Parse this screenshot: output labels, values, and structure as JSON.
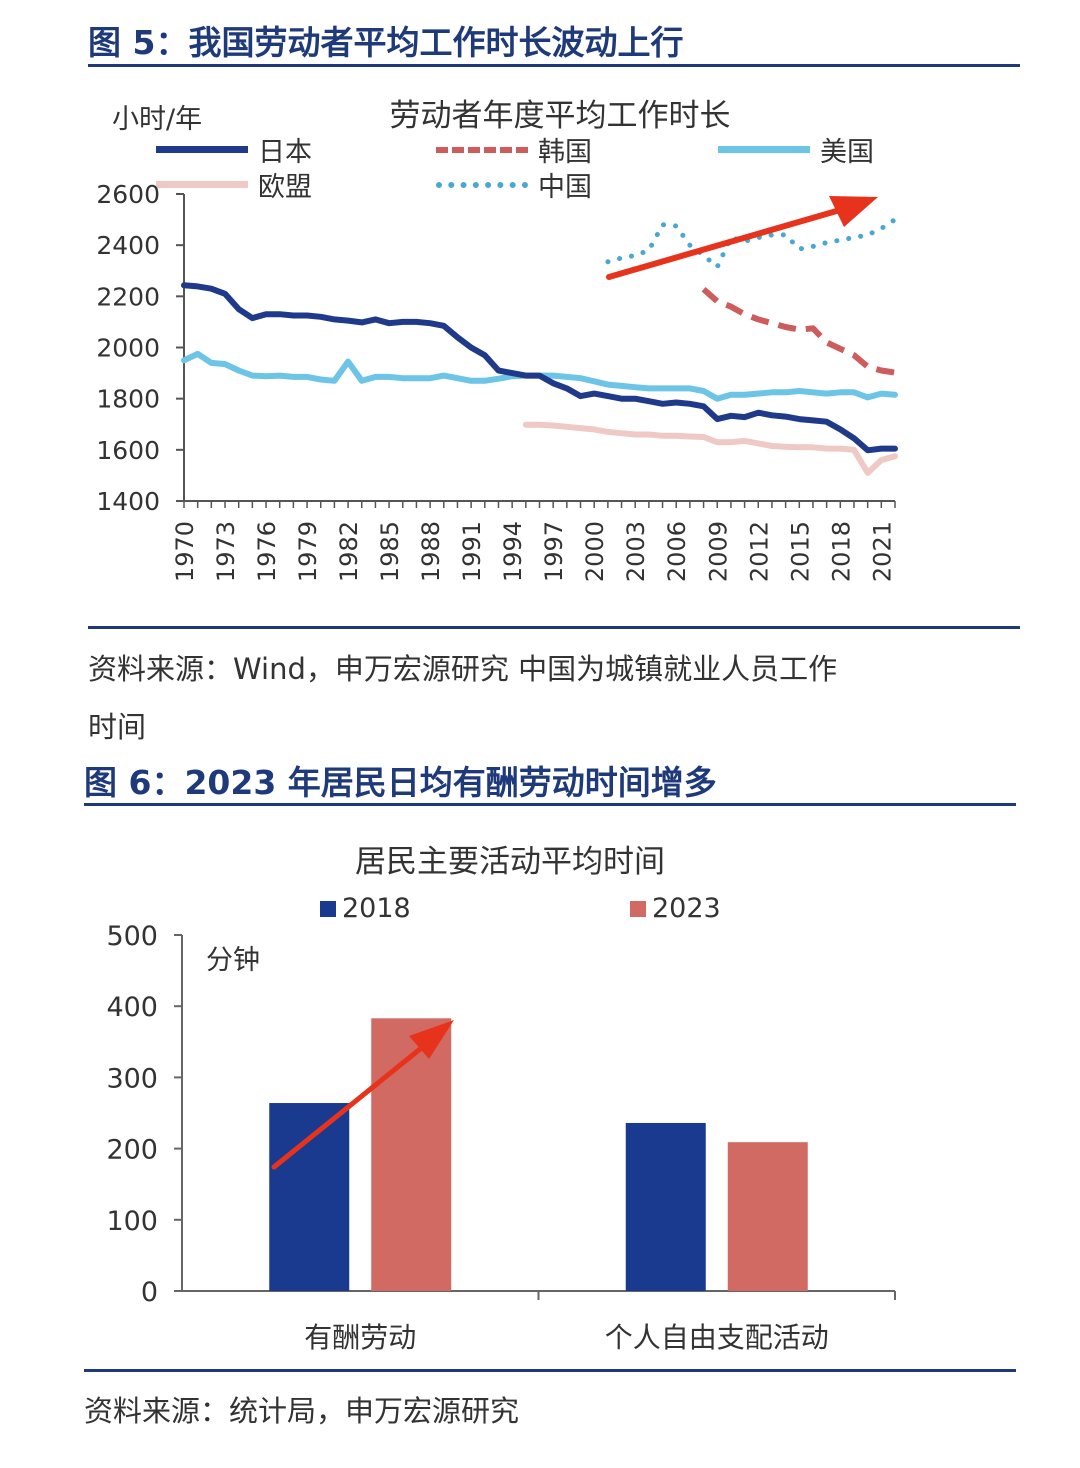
{
  "figure5": {
    "title": "图 5：我国劳动者平均工作时长波动上行",
    "source_line1": "资料来源：Wind，申万宏源研究 中国为城镇就业人员工作",
    "source_line2": "时间"
  },
  "figure6": {
    "title": "图 6：2023 年居民日均有酬劳动时间增多",
    "source": "资料来源：统计局，申万宏源研究"
  },
  "chart_data": [
    {
      "type": "line",
      "title": "劳动者年度平均工作时长",
      "ylabel": "小时/年",
      "ylim": [
        1400,
        2600
      ],
      "yticks": [
        1400,
        1600,
        1800,
        2000,
        2200,
        2400,
        2600
      ],
      "xlim": [
        1970,
        2022
      ],
      "xticks": [
        "1970",
        "1973",
        "1976",
        "1979",
        "1982",
        "1985",
        "1988",
        "1991",
        "1994",
        "1997",
        "2000",
        "2003",
        "2006",
        "2009",
        "2012",
        "2015",
        "2018",
        "2021"
      ],
      "grid": false,
      "legend_position": "top",
      "series": [
        {
          "name": "日本",
          "color": "#1f3a8a",
          "style": "solid",
          "x": [
            1970,
            1971,
            1972,
            1973,
            1974,
            1975,
            1976,
            1977,
            1978,
            1979,
            1980,
            1981,
            1982,
            1983,
            1984,
            1985,
            1986,
            1987,
            1988,
            1989,
            1990,
            1991,
            1992,
            1993,
            1994,
            1995,
            1996,
            1997,
            1998,
            1999,
            2000,
            2001,
            2002,
            2003,
            2004,
            2005,
            2006,
            2007,
            2008,
            2009,
            2010,
            2011,
            2012,
            2013,
            2014,
            2015,
            2016,
            2017,
            2018,
            2019,
            2020,
            2021,
            2022
          ],
          "y": [
            2243,
            2239,
            2230,
            2210,
            2150,
            2115,
            2130,
            2130,
            2125,
            2125,
            2120,
            2110,
            2105,
            2098,
            2110,
            2095,
            2100,
            2100,
            2095,
            2085,
            2040,
            2000,
            1970,
            1910,
            1900,
            1890,
            1890,
            1860,
            1840,
            1810,
            1820,
            1810,
            1800,
            1800,
            1790,
            1780,
            1785,
            1780,
            1770,
            1720,
            1733,
            1728,
            1745,
            1735,
            1730,
            1720,
            1715,
            1710,
            1680,
            1645,
            1598,
            1605,
            1605
          ]
        },
        {
          "name": "韩国",
          "color": "#cd5c5c",
          "style": "dashed",
          "x": [
            2008,
            2009,
            2010,
            2011,
            2012,
            2013,
            2014,
            2015,
            2016,
            2017,
            2018,
            2019,
            2020,
            2021,
            2022
          ],
          "y": [
            2228,
            2180,
            2160,
            2130,
            2110,
            2095,
            2080,
            2070,
            2075,
            2020,
            1995,
            1970,
            1925,
            1910,
            1902
          ]
        },
        {
          "name": "美国",
          "color": "#6cc4e6",
          "style": "solid",
          "x": [
            1970,
            1971,
            1972,
            1973,
            1974,
            1975,
            1976,
            1977,
            1978,
            1979,
            1980,
            1981,
            1982,
            1983,
            1984,
            1985,
            1986,
            1987,
            1988,
            1989,
            1990,
            1991,
            1992,
            1993,
            1994,
            1995,
            1996,
            1997,
            1998,
            1999,
            2000,
            2001,
            2002,
            2003,
            2004,
            2005,
            2006,
            2007,
            2008,
            2009,
            2010,
            2011,
            2012,
            2013,
            2014,
            2015,
            2016,
            2017,
            2018,
            2019,
            2020,
            2021,
            2022
          ],
          "y": [
            1950,
            1975,
            1940,
            1935,
            1910,
            1890,
            1888,
            1890,
            1885,
            1885,
            1875,
            1870,
            1945,
            1870,
            1885,
            1885,
            1880,
            1880,
            1880,
            1890,
            1880,
            1870,
            1870,
            1878,
            1888,
            1890,
            1890,
            1890,
            1885,
            1880,
            1868,
            1855,
            1850,
            1845,
            1840,
            1840,
            1840,
            1840,
            1830,
            1800,
            1815,
            1815,
            1820,
            1825,
            1825,
            1830,
            1825,
            1820,
            1825,
            1825,
            1805,
            1820,
            1815
          ]
        },
        {
          "name": "欧盟",
          "color": "#efc9c6",
          "style": "solid",
          "x": [
            1995,
            1996,
            1997,
            1998,
            1999,
            2000,
            2001,
            2002,
            2003,
            2004,
            2005,
            2006,
            2007,
            2008,
            2009,
            2010,
            2011,
            2012,
            2013,
            2014,
            2015,
            2016,
            2017,
            2018,
            2019,
            2020,
            2021,
            2022
          ],
          "y": [
            1698,
            1698,
            1695,
            1690,
            1685,
            1680,
            1670,
            1665,
            1660,
            1660,
            1655,
            1655,
            1652,
            1650,
            1630,
            1630,
            1635,
            1625,
            1615,
            1612,
            1610,
            1610,
            1605,
            1605,
            1600,
            1510,
            1560,
            1575
          ]
        },
        {
          "name": "中国",
          "color": "#4aa6d2",
          "style": "dotted",
          "x": [
            2001,
            2002,
            2003,
            2004,
            2005,
            2006,
            2007,
            2008,
            2009,
            2010,
            2011,
            2012,
            2013,
            2014,
            2015,
            2016,
            2017,
            2018,
            2019,
            2020,
            2021,
            2022
          ],
          "y": [
            2335,
            2350,
            2360,
            2380,
            2480,
            2475,
            2400,
            2360,
            2315,
            2430,
            2415,
            2430,
            2440,
            2440,
            2385,
            2395,
            2410,
            2420,
            2430,
            2440,
            2465,
            2500
          ]
        }
      ]
    },
    {
      "type": "bar",
      "title": "居民主要活动平均时间",
      "ylabel": "分钟",
      "ylim": [
        0,
        500
      ],
      "yticks": [
        0,
        100,
        200,
        300,
        400,
        500
      ],
      "grid": false,
      "legend_position": "top",
      "categories": [
        "有酬劳动",
        "个人自由支配活动"
      ],
      "series": [
        {
          "name": "2018",
          "color": "#1a3a8f",
          "values": [
            264,
            236
          ]
        },
        {
          "name": "2023",
          "color": "#d06a63",
          "values": [
            383,
            209
          ]
        }
      ]
    }
  ],
  "colors": {
    "title_blue": "#1f3a7a",
    "arrow_red": "#e8331c"
  }
}
